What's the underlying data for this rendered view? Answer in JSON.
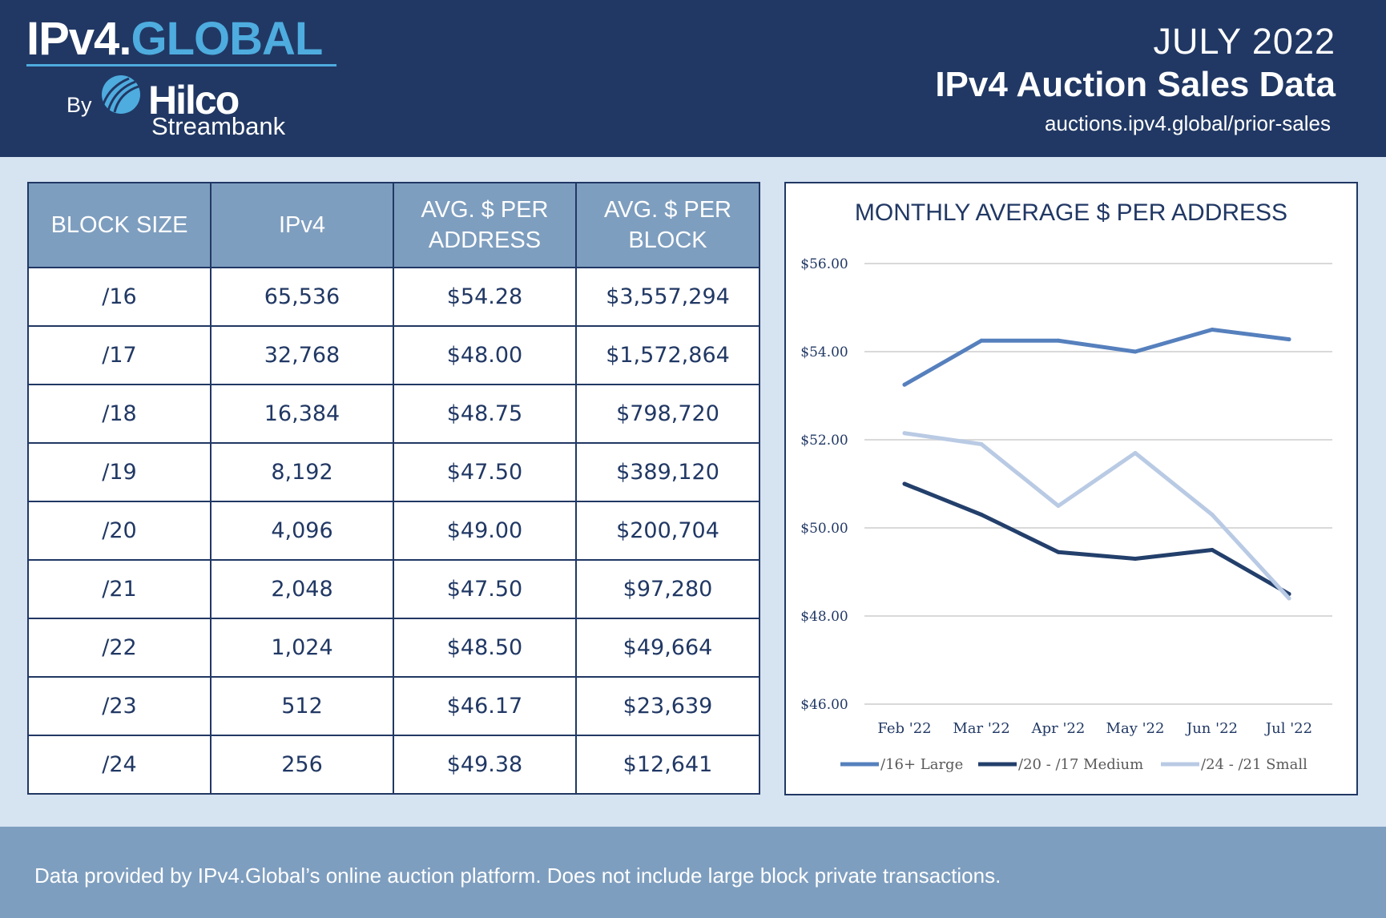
{
  "brand": {
    "ipv4": "IPv4",
    "dot": ".",
    "global": "GLOBAL",
    "by": "By",
    "hilco": "Hilco",
    "streambank": "Streambank"
  },
  "header": {
    "date": "JULY 2022",
    "title": "IPv4 Auction Sales Data",
    "url": "auctions.ipv4.global/prior-sales"
  },
  "table": {
    "headers": [
      "BLOCK SIZE",
      "IPv4",
      "AVG. $ PER ADDRESS",
      "AVG. $ PER BLOCK"
    ],
    "rows": [
      [
        "/16",
        "65,536",
        "$54.28",
        "$3,557,294"
      ],
      [
        "/17",
        "32,768",
        "$48.00",
        "$1,572,864"
      ],
      [
        "/18",
        "16,384",
        "$48.75",
        "$798,720"
      ],
      [
        "/19",
        "8,192",
        "$47.50",
        "$389,120"
      ],
      [
        "/20",
        "4,096",
        "$49.00",
        "$200,704"
      ],
      [
        "/21",
        "2,048",
        "$47.50",
        "$97,280"
      ],
      [
        "/22",
        "1,024",
        "$48.50",
        "$49,664"
      ],
      [
        "/23",
        "512",
        "$46.17",
        "$23,639"
      ],
      [
        "/24",
        "256",
        "$49.38",
        "$12,641"
      ]
    ]
  },
  "chart_data": {
    "type": "line",
    "title": "MONTHLY AVERAGE $ PER ADDRESS",
    "categories": [
      "Feb '22",
      "Mar '22",
      "Apr '22",
      "May '22",
      "Jun '22",
      "Jul '22"
    ],
    "ylim": [
      46,
      56
    ],
    "yticks": [
      "$56.00",
      "$54.00",
      "$52.00",
      "$50.00",
      "$48.00",
      "$46.00"
    ],
    "ytick_values": [
      56,
      54,
      52,
      50,
      48,
      46
    ],
    "grid": true,
    "legend_position": "bottom",
    "series": [
      {
        "name": "/16+ Large",
        "color": "#5680bd",
        "values": [
          53.25,
          54.25,
          54.25,
          54.0,
          54.5,
          54.28
        ]
      },
      {
        "name": "/20 - /17 Medium",
        "color": "#233f6b",
        "values": [
          51.0,
          50.3,
          49.45,
          49.3,
          49.5,
          48.5
        ]
      },
      {
        "name": "/24 - /21 Small",
        "color": "#b9cae4",
        "values": [
          52.15,
          51.9,
          50.5,
          51.7,
          50.3,
          48.4
        ]
      }
    ]
  },
  "footer": {
    "text": "Data provided by IPv4.Global’s online auction platform. Does not include large block private transactions."
  }
}
